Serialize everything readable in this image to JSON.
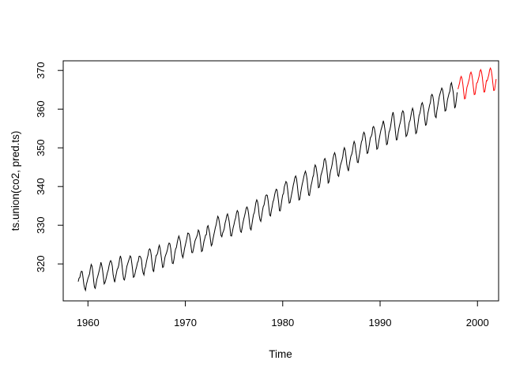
{
  "chart_data": {
    "type": "line",
    "title": "",
    "xlabel": "Time",
    "ylabel": "ts.union(co2, pred.ts)",
    "x_ticks": [
      1960,
      1970,
      1980,
      1990,
      2000
    ],
    "y_ticks": [
      320,
      330,
      340,
      350,
      360,
      370
    ],
    "xlim": [
      1957.46,
      2002.17
    ],
    "ylim": [
      310.45,
      372.49
    ],
    "grid": false,
    "legend_position": "none",
    "axis_color": "#000000",
    "background_color": "#ffffff",
    "frequency": 12,
    "series": [
      {
        "name": "co2",
        "color": "#000000",
        "start": 1959.0,
        "values_by_year": [
          [
            315.42,
            316.31,
            316.5,
            317.56,
            318.13,
            318.0,
            316.39,
            314.65,
            313.68,
            313.18,
            314.66,
            315.43
          ],
          [
            316.27,
            316.81,
            317.42,
            318.87,
            319.87,
            319.43,
            318.01,
            315.74,
            314.0,
            313.68,
            314.84,
            316.03
          ],
          [
            316.73,
            317.54,
            318.38,
            319.31,
            320.42,
            319.61,
            318.42,
            316.63,
            314.83,
            315.16,
            315.94,
            316.85
          ],
          [
            317.78,
            318.4,
            319.53,
            320.42,
            320.85,
            320.45,
            319.45,
            317.25,
            316.11,
            315.27,
            316.53,
            317.53
          ],
          [
            318.58,
            318.92,
            319.7,
            321.22,
            322.08,
            321.31,
            319.58,
            317.61,
            316.05,
            315.83,
            316.91,
            318.2
          ],
          [
            319.41,
            320.07,
            320.74,
            321.4,
            322.06,
            321.73,
            320.27,
            318.54,
            316.54,
            316.71,
            317.53,
            318.55
          ],
          [
            319.27,
            320.28,
            320.73,
            321.97,
            322.0,
            321.71,
            321.05,
            318.71,
            317.66,
            317.14,
            318.7,
            319.25
          ],
          [
            320.46,
            321.43,
            322.23,
            323.54,
            323.91,
            323.59,
            322.24,
            320.2,
            318.48,
            317.94,
            319.63,
            320.87
          ],
          [
            322.17,
            322.34,
            322.88,
            324.25,
            324.83,
            323.93,
            322.38,
            320.76,
            319.1,
            319.24,
            320.56,
            321.8
          ],
          [
            322.4,
            322.99,
            323.73,
            324.86,
            325.4,
            325.2,
            323.98,
            321.95,
            320.18,
            320.09,
            321.16,
            322.74
          ],
          [
            323.83,
            324.26,
            325.47,
            326.5,
            327.21,
            326.54,
            325.72,
            323.5,
            322.22,
            321.62,
            322.69,
            323.95
          ],
          [
            324.89,
            325.82,
            326.77,
            327.97,
            327.91,
            327.5,
            326.18,
            324.53,
            322.93,
            322.9,
            323.85,
            324.96
          ],
          [
            326.01,
            326.51,
            327.01,
            327.62,
            328.76,
            328.4,
            327.2,
            325.27,
            323.2,
            323.4,
            324.63,
            325.85
          ],
          [
            326.6,
            327.47,
            327.58,
            329.56,
            329.9,
            328.92,
            327.88,
            326.16,
            324.68,
            325.04,
            326.34,
            327.39
          ],
          [
            328.37,
            329.4,
            330.14,
            331.33,
            332.31,
            331.9,
            330.7,
            329.15,
            327.35,
            327.02,
            327.99,
            328.48
          ],
          [
            329.18,
            330.55,
            331.32,
            332.48,
            332.92,
            332.08,
            331.01,
            329.23,
            327.27,
            327.21,
            328.29,
            329.41
          ],
          [
            330.23,
            331.25,
            331.87,
            333.14,
            333.8,
            333.43,
            331.73,
            329.9,
            328.4,
            328.17,
            329.32,
            330.59
          ],
          [
            331.58,
            332.39,
            333.33,
            334.41,
            334.71,
            334.17,
            332.89,
            330.77,
            329.14,
            328.78,
            330.14,
            331.52
          ],
          [
            332.75,
            333.24,
            334.53,
            335.9,
            336.57,
            336.1,
            334.76,
            332.59,
            331.42,
            330.98,
            332.24,
            333.68
          ],
          [
            334.8,
            335.22,
            336.47,
            337.59,
            337.84,
            337.72,
            336.37,
            334.51,
            332.6,
            332.38,
            333.75,
            334.78
          ],
          [
            336.05,
            336.59,
            337.79,
            338.71,
            339.3,
            339.12,
            337.56,
            335.92,
            333.75,
            333.7,
            335.12,
            336.56
          ],
          [
            337.84,
            338.19,
            339.91,
            340.6,
            341.29,
            341.0,
            339.39,
            337.43,
            335.72,
            335.84,
            336.93,
            338.04
          ],
          [
            339.06,
            340.3,
            341.21,
            342.33,
            342.74,
            342.08,
            340.32,
            338.26,
            336.52,
            336.68,
            338.19,
            339.44
          ],
          [
            340.57,
            341.44,
            342.53,
            343.39,
            343.96,
            343.18,
            341.88,
            339.65,
            337.81,
            337.69,
            339.09,
            340.32
          ],
          [
            341.2,
            342.35,
            342.93,
            344.77,
            345.58,
            345.14,
            343.81,
            342.21,
            339.69,
            339.82,
            340.98,
            342.82
          ],
          [
            343.52,
            344.33,
            345.11,
            346.88,
            347.25,
            346.62,
            345.22,
            343.11,
            340.9,
            341.18,
            342.8,
            344.04
          ],
          [
            344.79,
            345.82,
            347.25,
            348.17,
            348.74,
            348.07,
            346.38,
            344.51,
            342.92,
            342.62,
            344.06,
            345.38
          ],
          [
            346.11,
            346.78,
            347.68,
            349.37,
            350.03,
            349.37,
            347.76,
            345.73,
            344.68,
            343.99,
            345.48,
            346.72
          ],
          [
            347.84,
            348.29,
            349.23,
            350.8,
            351.66,
            351.07,
            349.33,
            347.92,
            346.27,
            346.18,
            347.64,
            348.78
          ],
          [
            350.25,
            351.54,
            352.05,
            353.41,
            354.04,
            353.62,
            352.22,
            350.27,
            348.55,
            348.72,
            349.91,
            351.18
          ],
          [
            352.6,
            352.92,
            353.53,
            355.26,
            355.52,
            354.97,
            353.75,
            351.52,
            349.64,
            349.83,
            351.14,
            352.37
          ],
          [
            353.5,
            354.55,
            355.23,
            356.04,
            357.0,
            356.07,
            354.67,
            352.76,
            350.82,
            351.04,
            352.69,
            354.07
          ],
          [
            354.59,
            355.63,
            357.03,
            358.48,
            359.22,
            358.12,
            356.06,
            353.92,
            352.05,
            352.11,
            353.64,
            354.89
          ],
          [
            355.88,
            356.63,
            357.72,
            359.07,
            359.58,
            359.17,
            356.94,
            354.92,
            352.94,
            353.23,
            354.09,
            355.33
          ],
          [
            356.63,
            357.1,
            358.32,
            359.41,
            360.23,
            359.55,
            357.53,
            355.48,
            353.67,
            353.95,
            355.3,
            356.78
          ],
          [
            358.34,
            358.89,
            359.95,
            361.25,
            361.67,
            360.94,
            359.55,
            357.49,
            355.84,
            356.0,
            357.59,
            359.05
          ],
          [
            359.98,
            361.03,
            361.66,
            363.48,
            363.82,
            363.3,
            361.94,
            359.5,
            358.11,
            357.8,
            359.61,
            360.74
          ],
          [
            362.09,
            363.29,
            364.06,
            364.76,
            365.45,
            365.01,
            363.7,
            361.54,
            359.51,
            359.65,
            360.8,
            362.38
          ],
          [
            363.23,
            364.06,
            364.61,
            366.4,
            366.84,
            365.68,
            364.52,
            362.57,
            360.24,
            360.83,
            362.49,
            364.34
          ]
        ]
      },
      {
        "name": "pred.ts",
        "color": "#ff0000",
        "start": 1998.0,
        "values_by_year": [
          [
            365.18,
            365.98,
            366.77,
            368.01,
            368.46,
            367.85,
            366.44,
            364.44,
            362.67,
            362.76,
            364.16,
            365.62
          ],
          [
            366.28,
            367.08,
            367.87,
            369.11,
            369.56,
            368.95,
            367.54,
            365.54,
            363.77,
            363.86,
            365.26,
            366.72
          ],
          [
            366.93,
            367.73,
            368.52,
            369.76,
            370.21,
            369.6,
            368.19,
            366.19,
            364.42,
            364.51,
            365.91,
            367.37
          ],
          [
            367.33,
            368.13,
            368.92,
            370.16,
            370.61,
            370.0,
            368.59,
            366.59,
            364.82,
            364.91,
            366.31,
            367.77
          ]
        ]
      }
    ]
  }
}
